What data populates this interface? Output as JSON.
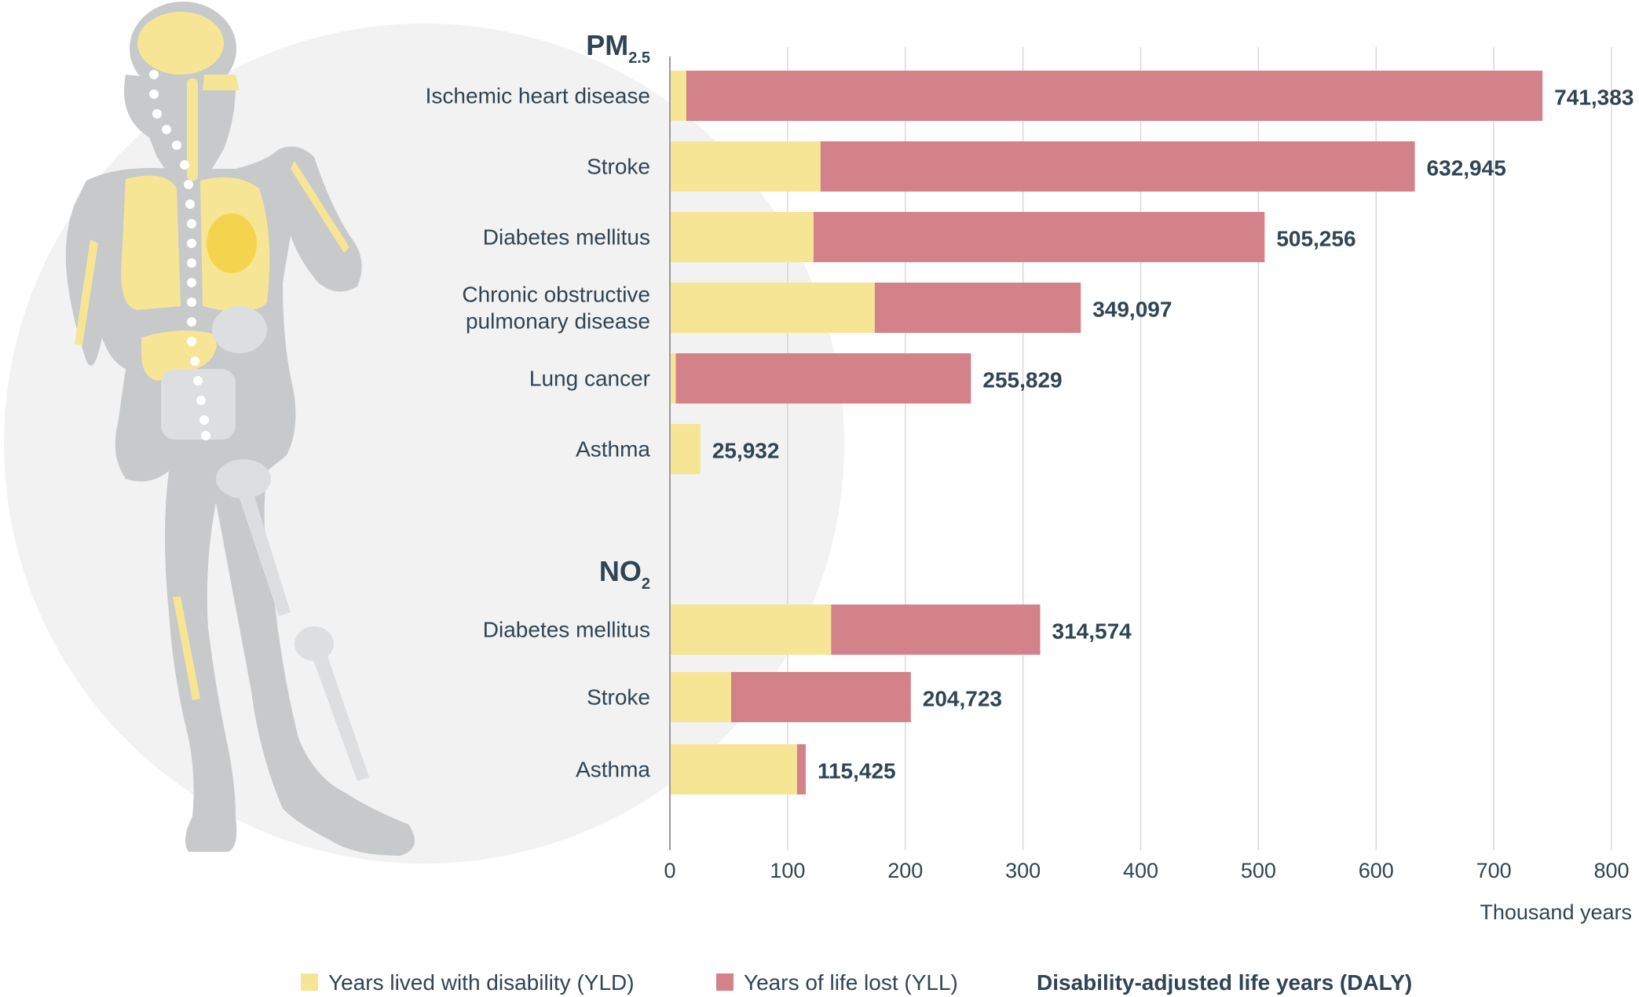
{
  "chart_data": {
    "type": "bar",
    "orientation": "horizontal",
    "stacked": true,
    "xlabel": "Thousand years",
    "xlim": [
      0,
      800
    ],
    "xticks": [
      "0",
      "100",
      "200",
      "300",
      "400",
      "500",
      "600",
      "700",
      "800"
    ],
    "grid": true,
    "legend_placement": "bottom",
    "colors": {
      "yld": "#f7e596",
      "yll": "#d4828a",
      "grid": "#d9d9d9",
      "axis": "#9a9a9a",
      "text": "#2f4454",
      "figure": "#c7c9ca",
      "organ": "#f7e596",
      "circle": "#f2f2f2"
    },
    "series": [
      {
        "name": "Years lived with disability (YLD)",
        "key": "yld"
      },
      {
        "name": "Years of life lost (YLL)",
        "key": "yll"
      }
    ],
    "total_label": "Disability-adjusted life years (DALY)",
    "groups": [
      {
        "title": "PM",
        "subscript": "2.5",
        "rows": [
          {
            "label": [
              "Ischemic heart disease"
            ],
            "yld": 14,
            "yll": 727.4,
            "total_text": "741,383"
          },
          {
            "label": [
              "Stroke"
            ],
            "yld": 128,
            "yll": 504.9,
            "total_text": "632,945"
          },
          {
            "label": [
              "Diabetes mellitus"
            ],
            "yld": 122,
            "yll": 383.3,
            "total_text": "505,256"
          },
          {
            "label": [
              "Chronic obstructive",
              "pulmonary disease"
            ],
            "yld": 174,
            "yll": 175.1,
            "total_text": "349,097"
          },
          {
            "label": [
              "Lung cancer"
            ],
            "yld": 5,
            "yll": 250.8,
            "total_text": "255,829"
          },
          {
            "label": [
              "Asthma"
            ],
            "yld": 25.9,
            "yll": 0,
            "total_text": "25,932"
          }
        ]
      },
      {
        "title": "NO",
        "subscript": "2",
        "rows": [
          {
            "label": [
              "Diabetes mellitus"
            ],
            "yld": 137,
            "yll": 177.6,
            "total_text": "314,574"
          },
          {
            "label": [
              "Stroke"
            ],
            "yld": 52,
            "yll": 152.7,
            "total_text": "204,723"
          },
          {
            "label": [
              "Asthma"
            ],
            "yld": 108,
            "yll": 7.4,
            "total_text": "115,425"
          }
        ]
      }
    ]
  }
}
